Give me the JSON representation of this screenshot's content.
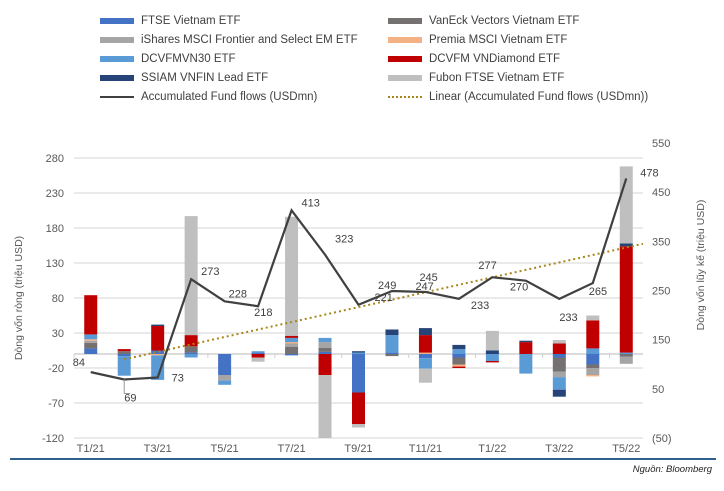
{
  "legend": [
    {
      "name": "FTSE Vietnam ETF",
      "color": "#4472c4",
      "kind": "bar"
    },
    {
      "name": "VanEck Vectors Vietnam ETF",
      "color": "#767171",
      "kind": "bar"
    },
    {
      "name": "iShares MSCI Frontier and Select EM ETF",
      "color": "#a5a5a5",
      "kind": "bar"
    },
    {
      "name": "Premia MSCI Vietnam ETF",
      "color": "#f4b183",
      "kind": "bar"
    },
    {
      "name": "DCVFMVN30 ETF",
      "color": "#5b9bd5",
      "kind": "bar"
    },
    {
      "name": "DCVFM VNDiamond ETF",
      "color": "#c00000",
      "kind": "bar"
    },
    {
      "name": "SSIAM VNFIN Lead ETF",
      "color": "#264478",
      "kind": "bar"
    },
    {
      "name": "Fubon FTSE Vietnam ETF",
      "color": "#bfbfbf",
      "kind": "bar"
    },
    {
      "name": "Accumulated Fund flows (USDmn)",
      "color": "#404040",
      "kind": "line"
    },
    {
      "name": "Linear (Accumulated Fund flows (USDmn))",
      "color": "#a8861a",
      "kind": "dotted"
    }
  ],
  "source": "Nguồn: Bloomberg",
  "chart_data": {
    "type": "bar",
    "stacked": true,
    "title": "",
    "categories": [
      "T1/21",
      "T2/21",
      "T3/21",
      "T4/21",
      "T5/21",
      "T6/21",
      "T7/21",
      "T8/21",
      "T9/21",
      "T10/21",
      "T11/21",
      "T12/21",
      "T1/22",
      "T2/22",
      "T3/22",
      "T4/22",
      "T5/22"
    ],
    "x_tick_labels": [
      "T1/21",
      "T3/21",
      "T5/21",
      "T7/21",
      "T9/21",
      "T11/21",
      "T1/22",
      "T3/22",
      "T5/22"
    ],
    "ylabel": "Dòng vốn ròng (triệu USD)",
    "ylabel_right": "Dòng vốn lũy kế (triệu USD)",
    "ylim": [
      -120,
      280
    ],
    "yticks": [
      -120,
      -70,
      -20,
      30,
      80,
      130,
      180,
      230,
      280
    ],
    "ylim_right": [
      -50,
      550
    ],
    "yticks_right": [
      "(50)",
      "50",
      "150",
      "250",
      "350",
      "450",
      "550"
    ],
    "grid": true,
    "series": [
      {
        "name": "FTSE Vietnam ETF",
        "values": [
          8,
          -3,
          5,
          2,
          -30,
          2,
          -2,
          3,
          -55,
          2,
          -6,
          -5,
          0,
          0,
          -5,
          -15,
          0
        ]
      },
      {
        "name": "VanEck Vectors Vietnam ETF",
        "values": [
          8,
          4,
          0,
          9,
          0,
          0,
          10,
          6,
          0,
          -3,
          0,
          -10,
          0,
          0,
          -20,
          -5,
          -4
        ]
      },
      {
        "name": "iShares MSCI Frontier and Select EM ETF",
        "values": [
          3,
          0,
          0,
          0,
          -8,
          0,
          5,
          8,
          0,
          0,
          0,
          0,
          0,
          0,
          -8,
          -10,
          -10
        ]
      },
      {
        "name": "Premia MSCI Vietnam ETF",
        "values": [
          2,
          0,
          -2,
          0,
          0,
          0,
          2,
          0,
          0,
          0,
          2,
          -3,
          0,
          0,
          0,
          -2,
          0
        ]
      },
      {
        "name": "DCVFMVN30 ETF",
        "values": [
          7,
          -28,
          -35,
          -5,
          -6,
          2,
          6,
          6,
          2,
          25,
          -15,
          7,
          -10,
          -28,
          -18,
          8,
          2
        ]
      },
      {
        "name": "DCVFM VNDiamond ETF",
        "values": [
          56,
          3,
          35,
          16,
          0,
          -5,
          3,
          -30,
          -45,
          0,
          25,
          -2,
          -2,
          17,
          15,
          40,
          152
        ]
      },
      {
        "name": "SSIAM VNFIN Lead ETF",
        "values": [
          0,
          0,
          2,
          0,
          0,
          0,
          0,
          0,
          2,
          8,
          10,
          6,
          5,
          2,
          -10,
          0,
          4
        ]
      },
      {
        "name": "Fubon FTSE Vietnam ETF",
        "values": [
          0,
          0,
          0,
          170,
          0,
          -6,
          170,
          -90,
          -5,
          0,
          -20,
          0,
          28,
          0,
          5,
          7,
          110
        ]
      }
    ],
    "line": {
      "name": "Accumulated Fund flows (USDmn)",
      "axis": "right",
      "values": [
        84,
        69,
        73,
        273,
        228,
        218,
        413,
        323,
        221,
        249,
        247,
        233,
        277,
        270,
        233,
        265,
        478
      ],
      "labels": [
        "84",
        "69",
        "73",
        "273",
        "228",
        "218",
        "413",
        "323",
        "221",
        "249",
        "247",
        "233",
        "277",
        "270",
        "233",
        "265",
        "478"
      ],
      "extra_label": "245"
    },
    "trendline": {
      "name": "Linear (Accumulated Fund flows (USDmn))",
      "axis": "right",
      "start": 110,
      "end": 345,
      "start_index": 1
    }
  }
}
